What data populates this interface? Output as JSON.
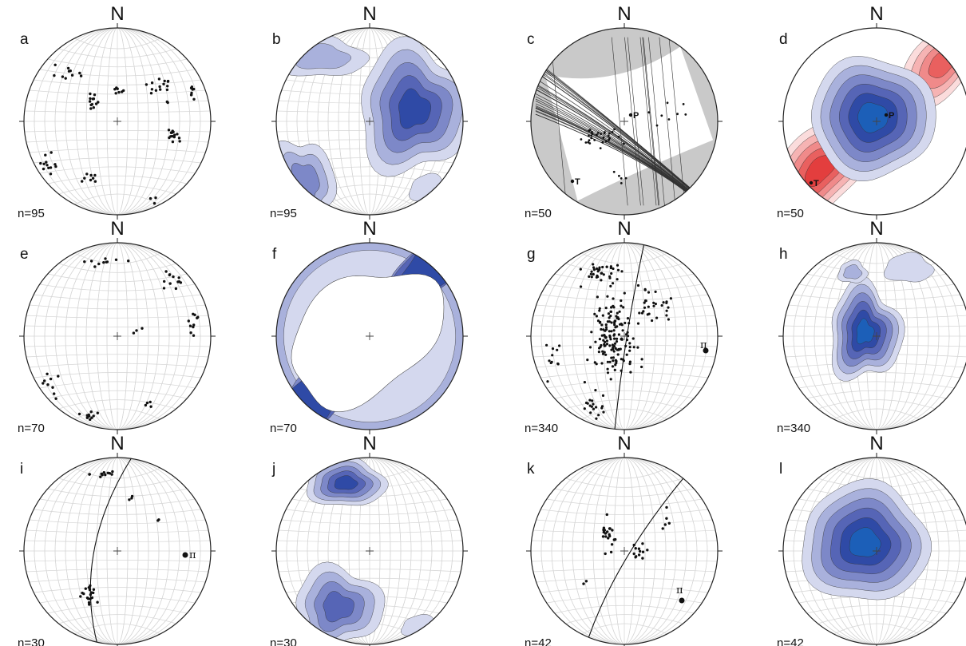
{
  "panels": [
    {
      "id": "a",
      "north": "N",
      "count": "n=95",
      "kind": "points-a",
      "lines": "none"
    },
    {
      "id": "b",
      "north": "N",
      "count": "n=95",
      "kind": "contour-b",
      "lines": "none"
    },
    {
      "id": "c",
      "north": "N",
      "count": "n=50",
      "kind": "faults",
      "lines": "many",
      "markers": [
        {
          "label": "P"
        },
        {
          "label": "T"
        }
      ]
    },
    {
      "id": "d",
      "north": "N",
      "count": "n=50",
      "kind": "pt-density",
      "lines": "none",
      "markers": [
        {
          "label": "P"
        },
        {
          "label": "T"
        }
      ]
    },
    {
      "id": "e",
      "north": "N",
      "count": "n=70",
      "kind": "points-e",
      "lines": "none"
    },
    {
      "id": "f",
      "north": "N",
      "count": "n=70",
      "kind": "contour-f",
      "lines": "none"
    },
    {
      "id": "g",
      "north": "N",
      "count": "n=340",
      "kind": "points-g",
      "lines": "girdle",
      "pi": "π"
    },
    {
      "id": "h",
      "north": "N",
      "count": "n=340",
      "kind": "contour-h",
      "lines": "none"
    },
    {
      "id": "i",
      "north": "N",
      "count": "n=30",
      "kind": "points-i",
      "lines": "girdle",
      "pi": "π"
    },
    {
      "id": "j",
      "north": "N",
      "count": "n=30",
      "kind": "contour-j",
      "lines": "none"
    },
    {
      "id": "k",
      "north": "N",
      "count": "n=42",
      "kind": "points-k",
      "lines": "girdle",
      "pi": "π"
    },
    {
      "id": "l",
      "north": "N",
      "count": "n=42",
      "kind": "contour-l",
      "lines": "none"
    }
  ],
  "colors": {
    "outline": "#222222",
    "grid": "#d6d6d6",
    "blue_levels": [
      "#d4d8ee",
      "#a9b1dc",
      "#7d88c8",
      "#5665b6",
      "#2f4aa6",
      "#1c5fb8"
    ],
    "red_levels": [
      "#fbdcdc",
      "#f6b3b3",
      "#f08a8a",
      "#e9605f",
      "#e33e3e"
    ],
    "shade": "#c9c9c9"
  }
}
